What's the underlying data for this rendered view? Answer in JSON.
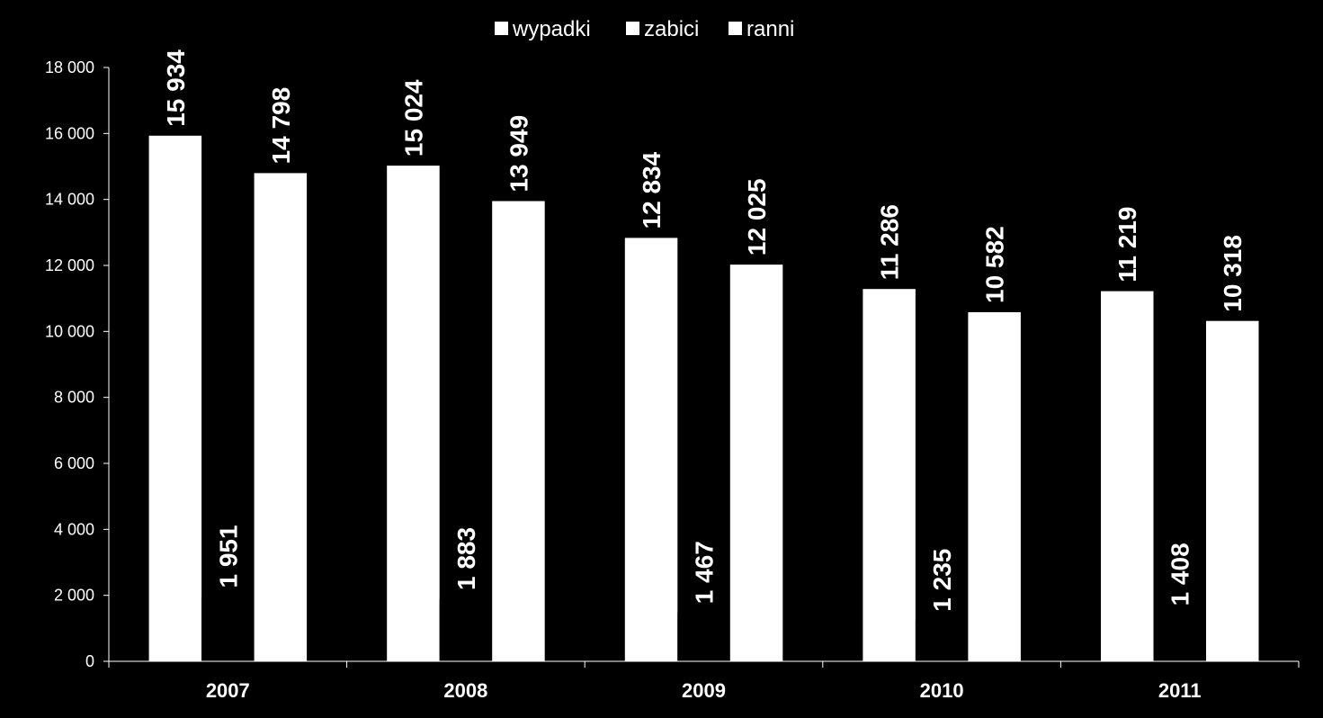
{
  "chart_data": {
    "type": "bar",
    "categories": [
      "2007",
      "2008",
      "2009",
      "2010",
      "2011"
    ],
    "series": [
      {
        "name": "wypadki",
        "values": [
          15934,
          15024,
          12834,
          11286,
          11219
        ]
      },
      {
        "name": "zabici",
        "values": [
          1951,
          1883,
          1467,
          1235,
          1408
        ]
      },
      {
        "name": "ranni",
        "values": [
          14798,
          13949,
          12025,
          10582,
          10318
        ]
      }
    ],
    "value_labels": [
      [
        "15 934",
        "15 024",
        "12 834",
        "11 286",
        "11 219"
      ],
      [
        "1 951",
        "1 883",
        "1 467",
        "1 235",
        "1 408"
      ],
      [
        "14 798",
        "13 949",
        "12 025",
        "10 582",
        "10 318"
      ]
    ],
    "yticks": [
      0,
      2000,
      4000,
      6000,
      8000,
      10000,
      12000,
      14000,
      16000,
      18000
    ],
    "ytick_labels": [
      "0",
      "2 000",
      "4 000",
      "6 000",
      "8 000",
      "10 000",
      "12 000",
      "14 000",
      "16 000",
      "18 000"
    ],
    "ylim": [
      0,
      18000
    ],
    "title": "",
    "xlabel": "",
    "ylabel": "",
    "grid": false,
    "legend_position": "top-center",
    "colors": {
      "background": "#000000",
      "wypadki": "#ffffff",
      "zabici": "#000000",
      "ranni": "#ffffff",
      "axis": "#ffffff",
      "text": "#ffffff"
    }
  }
}
